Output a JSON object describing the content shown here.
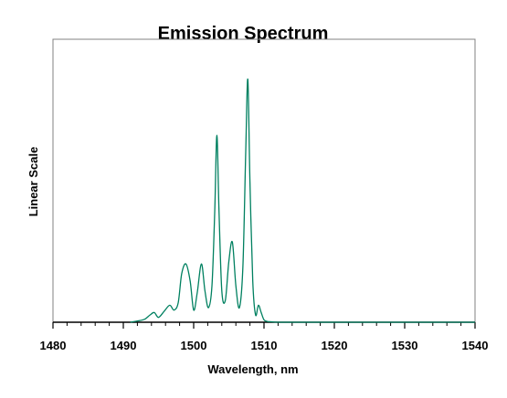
{
  "chart_data": {
    "type": "line",
    "title": "Emission Spectrum",
    "xlabel": "Wavelength, nm",
    "ylabel": "Linear Scale",
    "xlim": [
      1480,
      1540
    ],
    "ylim": [
      0,
      1
    ],
    "x_ticks": [
      1480,
      1490,
      1500,
      1510,
      1520,
      1530,
      1540
    ],
    "x_tick_labels": [
      "1480",
      "1490",
      "1500",
      "1510",
      "1520",
      "1530",
      "1540"
    ],
    "y_tick_labels_shown": false,
    "grid": false,
    "legend": "none",
    "series": [
      {
        "color": "#008060",
        "x": [
          1491,
          1492,
          1493,
          1493.8,
          1494.4,
          1495,
          1495.8,
          1496.6,
          1497.2,
          1497.8,
          1498.3,
          1498.9,
          1499.5,
          1500.0,
          1500.5,
          1501.1,
          1501.6,
          1502.1,
          1502.6,
          1503.0,
          1503.3,
          1503.6,
          1504.0,
          1504.5,
          1505.0,
          1505.5,
          1506.0,
          1506.5,
          1507.0,
          1507.4,
          1507.7,
          1508.0,
          1508.4,
          1508.8,
          1509.2,
          1509.6,
          1510.0,
          1510.5,
          1511,
          1512,
          1515,
          1520,
          1525,
          1530,
          1535,
          1540
        ],
        "y": [
          0.0,
          0.005,
          0.012,
          0.03,
          0.04,
          0.02,
          0.045,
          0.07,
          0.05,
          0.08,
          0.2,
          0.24,
          0.17,
          0.05,
          0.12,
          0.24,
          0.13,
          0.06,
          0.15,
          0.46,
          0.77,
          0.46,
          0.13,
          0.09,
          0.25,
          0.33,
          0.15,
          0.06,
          0.23,
          0.7,
          1.0,
          0.58,
          0.17,
          0.03,
          0.07,
          0.04,
          0.01,
          0.003,
          0.002,
          0.0,
          0.0,
          0.0,
          0.0,
          0.0,
          0.0,
          0.0
        ]
      }
    ]
  }
}
